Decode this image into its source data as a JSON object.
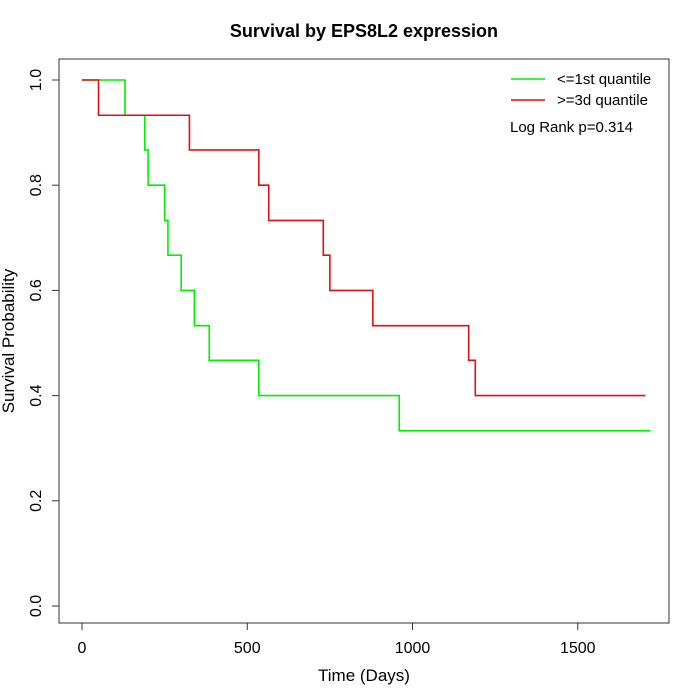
{
  "chart_data": {
    "type": "line",
    "title": "Survival by EPS8L2 expression",
    "xlabel": "Time (Days)",
    "ylabel": "Survival Probability",
    "xlim": [
      0,
      1750
    ],
    "ylim": [
      0,
      1
    ],
    "xticks": [
      0,
      500,
      1000,
      1500
    ],
    "xtick_labels": [
      "0",
      "500",
      "1000",
      "1500"
    ],
    "yticks": [
      0,
      0.2,
      0.4,
      0.6,
      0.8,
      1.0
    ],
    "ytick_labels": [
      "0.0",
      "0.2",
      "0.4",
      "0.6",
      "0.8",
      "1.0"
    ],
    "grid": false,
    "legend_position": "top-right",
    "annotation": "Log Rank p=0.314",
    "series": [
      {
        "name": "<=1st quantile",
        "color": "#00ee00",
        "step": true,
        "x": [
          0,
          130,
          190,
          200,
          250,
          260,
          300,
          340,
          385,
          535,
          960,
          1720
        ],
        "y": [
          1.0,
          0.933,
          0.867,
          0.8,
          0.733,
          0.667,
          0.6,
          0.533,
          0.467,
          0.4,
          0.333,
          0.333
        ]
      },
      {
        "name": ">=3d quantile",
        "color": "#dd1111",
        "step": true,
        "x": [
          0,
          50,
          325,
          535,
          565,
          730,
          750,
          880,
          1170,
          1190,
          1705
        ],
        "y": [
          1.0,
          0.933,
          0.867,
          0.8,
          0.733,
          0.667,
          0.6,
          0.533,
          0.467,
          0.4,
          0.4
        ]
      }
    ]
  }
}
